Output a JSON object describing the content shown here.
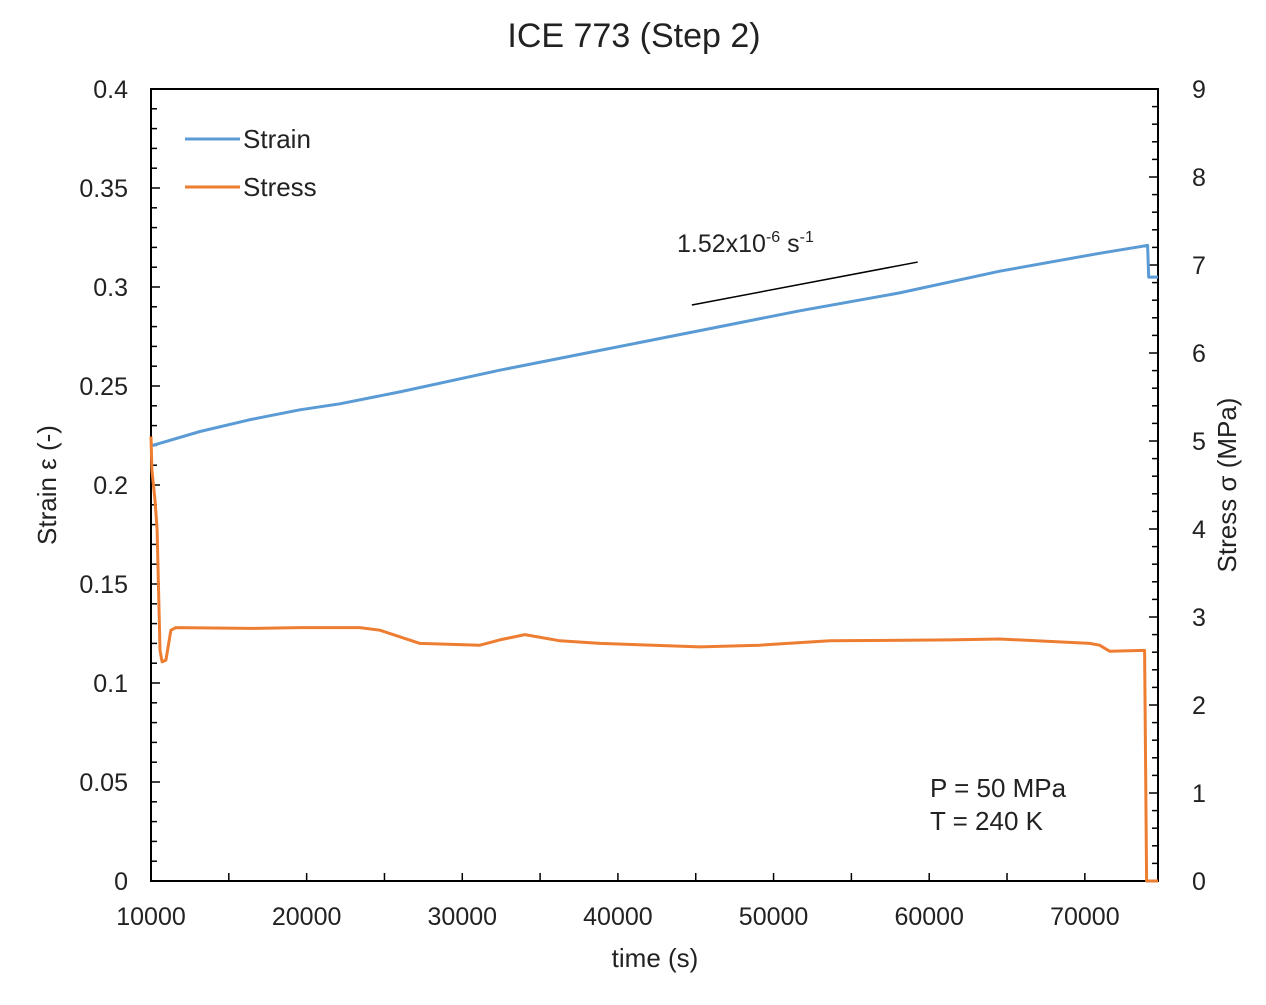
{
  "chart_data": {
    "type": "line",
    "title": "ICE 773 (Step 2)",
    "xlabel": "time (s)",
    "ylabel": "Strain ε (-)",
    "y2label": "Stress σ (MPa)",
    "xlim": [
      10000,
      74700
    ],
    "ylim": [
      0,
      0.4
    ],
    "y2lim": [
      0,
      9
    ],
    "xticks": [
      "10000",
      "20000",
      "30000",
      "40000",
      "50000",
      "60000",
      "70000"
    ],
    "xtick_values": [
      10000,
      20000,
      30000,
      40000,
      50000,
      60000,
      70000
    ],
    "yticks": [
      "0",
      "0.05",
      "0.1",
      "0.15",
      "0.2",
      "0.25",
      "0.3",
      "0.35",
      "0.4"
    ],
    "ytick_values": [
      0,
      0.05,
      0.1,
      0.15,
      0.2,
      0.25,
      0.3,
      0.35,
      0.4
    ],
    "y2ticks": [
      "0",
      "1",
      "2",
      "3",
      "4",
      "5",
      "6",
      "7",
      "8",
      "9"
    ],
    "y2tick_values": [
      0,
      1,
      2,
      3,
      4,
      5,
      6,
      7,
      8,
      9
    ],
    "grid": false,
    "legend_position": "top-left",
    "series": [
      {
        "name": "Strain",
        "axis": "left",
        "color": "#5b9bd5",
        "x": [
          10100,
          13150,
          16360,
          19570,
          22140,
          25990,
          32410,
          38840,
          45260,
          51680,
          58100,
          64530,
          70950,
          74030,
          74100,
          74700
        ],
        "y": [
          0.22,
          0.227,
          0.233,
          0.238,
          0.241,
          0.247,
          0.258,
          0.268,
          0.278,
          0.288,
          0.297,
          0.308,
          0.317,
          0.321,
          0.305,
          0.305
        ]
      },
      {
        "name": "Stress",
        "axis": "right",
        "color": "#ed7d31",
        "x": [
          10000,
          10060,
          10260,
          10390,
          10580,
          10710,
          10960,
          11280,
          11600,
          16360,
          19570,
          23420,
          24700,
          27280,
          31130,
          32410,
          34020,
          36270,
          38840,
          45260,
          49110,
          53610,
          61320,
          64530,
          70310,
          70950,
          71600,
          73840,
          73970,
          74700
        ],
        "y": [
          5.05,
          4.67,
          4.33,
          4.0,
          2.62,
          2.49,
          2.51,
          2.85,
          2.88,
          2.87,
          2.88,
          2.88,
          2.85,
          2.7,
          2.68,
          2.74,
          2.8,
          2.73,
          2.7,
          2.66,
          2.68,
          2.73,
          2.74,
          2.75,
          2.7,
          2.68,
          2.61,
          2.62,
          0,
          0
        ]
      }
    ],
    "annotations": {
      "rate_label": {
        "base": "1.52x10",
        "exp1": "-6",
        "unit": " s",
        "exp2": "-1"
      },
      "slope_line": {
        "x": [
          44750,
          59260
        ],
        "y": [
          0.2909,
          0.3126
        ]
      },
      "conditions": [
        "P = 50 MPa",
        "T = 240 K"
      ]
    }
  }
}
